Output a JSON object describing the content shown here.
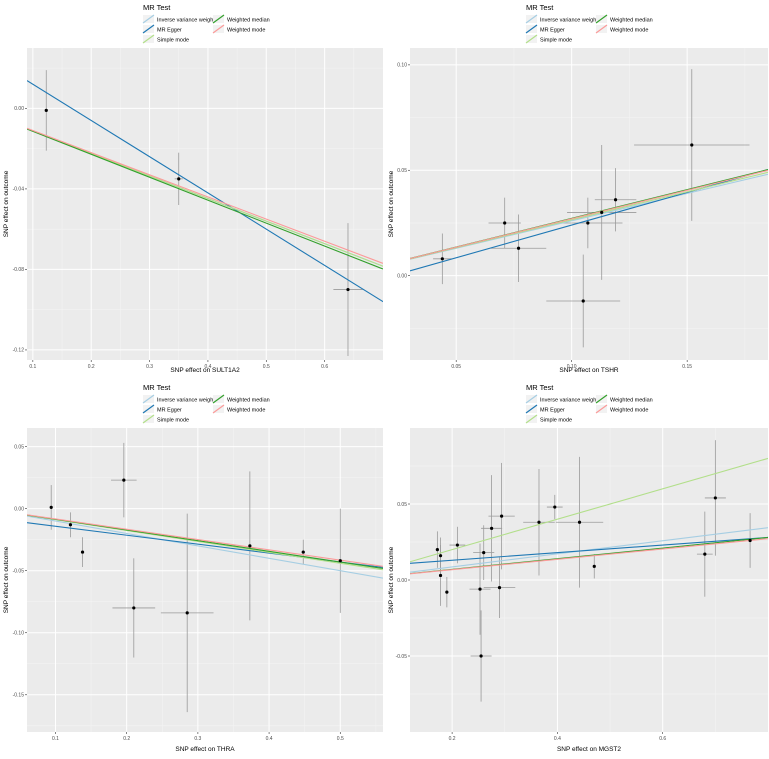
{
  "legend": {
    "title": "MR Test",
    "items": [
      {
        "label": "Inverse variance weighted",
        "color": "#a6cee3"
      },
      {
        "label": "MR Egger",
        "color": "#1f78b4"
      },
      {
        "label": "Simple mode",
        "color": "#b2df8a"
      },
      {
        "label": "Weighted median",
        "color": "#33a02c"
      },
      {
        "label": "Weighted mode",
        "color": "#fb9a99"
      }
    ]
  },
  "colors": {
    "panel_bg": "#ebebeb",
    "grid_major": "#ffffff",
    "point": "#000000",
    "errorbar": "#9a9a9a",
    "axis_text": "#4d4d4d"
  },
  "chart_data": [
    {
      "type": "scatter",
      "xlabel": "SNP effect on SULT1A2",
      "ylabel": "SNP effect on outcome",
      "xlim": [
        0.09,
        0.7
      ],
      "ylim": [
        -0.125,
        0.03
      ],
      "xticks": [
        0.1,
        0.2,
        0.3,
        0.4,
        0.5,
        0.6
      ],
      "xtick_labels": [
        "0.1",
        "0.2",
        "0.3",
        "0.4",
        "0.5",
        "0.6"
      ],
      "yticks": [
        0.0,
        -0.04,
        -0.08,
        -0.12
      ],
      "ytick_labels": [
        "0.00",
        "-0.04",
        "-0.08",
        "-0.12"
      ],
      "points": [
        {
          "x": 0.123,
          "y": -0.001,
          "xerr": 0.0,
          "yerr": 0.02
        },
        {
          "x": 0.35,
          "y": -0.035,
          "xerr": 0.007,
          "yerr": 0.013
        },
        {
          "x": 0.64,
          "y": -0.09,
          "xerr": 0.025,
          "yerr": 0.033
        }
      ],
      "lines": [
        {
          "method": "Inverse variance weighted",
          "intercept": 0.0,
          "slope": -0.112
        },
        {
          "method": "MR Egger",
          "intercept": 0.03,
          "slope": -0.18
        },
        {
          "method": "Simple mode",
          "intercept": 0.0,
          "slope": -0.112
        },
        {
          "method": "Weighted median",
          "intercept": 0.0,
          "slope": -0.114
        },
        {
          "method": "Weighted mode",
          "intercept": 0.0,
          "slope": -0.11
        }
      ]
    },
    {
      "type": "scatter",
      "xlabel": "SNP effect on TSHR",
      "ylabel": "SNP effect on outcome",
      "xlim": [
        0.03,
        0.185
      ],
      "ylim": [
        -0.04,
        0.108
      ],
      "xticks": [
        0.05,
        0.1,
        0.15
      ],
      "xtick_labels": [
        "0.05",
        "0.10",
        "0.15"
      ],
      "yticks": [
        0.1,
        0.05,
        0.0
      ],
      "ytick_labels": [
        "0.10",
        "0.05",
        "0.00"
      ],
      "points": [
        {
          "x": 0.044,
          "y": 0.008,
          "xerr": 0.004,
          "yerr": 0.012
        },
        {
          "x": 0.071,
          "y": 0.025,
          "xerr": 0.007,
          "yerr": 0.012
        },
        {
          "x": 0.077,
          "y": 0.013,
          "xerr": 0.012,
          "yerr": 0.016
        },
        {
          "x": 0.105,
          "y": -0.012,
          "xerr": 0.016,
          "yerr": 0.022
        },
        {
          "x": 0.107,
          "y": 0.025,
          "xerr": 0.015,
          "yerr": 0.012
        },
        {
          "x": 0.113,
          "y": 0.03,
          "xerr": 0.015,
          "yerr": 0.032
        },
        {
          "x": 0.119,
          "y": 0.036,
          "xerr": 0.009,
          "yerr": 0.015
        },
        {
          "x": 0.152,
          "y": 0.062,
          "xerr": 0.025,
          "yerr": 0.036
        }
      ],
      "lines": [
        {
          "method": "Inverse variance weighted",
          "intercept": 0.0,
          "slope": 0.26
        },
        {
          "method": "MR Egger",
          "intercept": -0.007,
          "slope": 0.31
        },
        {
          "method": "Simple mode",
          "intercept": 0.0,
          "slope": 0.265
        },
        {
          "method": "Weighted median",
          "intercept": 0.0,
          "slope": 0.272
        },
        {
          "method": "Weighted mode",
          "intercept": 0.0,
          "slope": 0.27
        }
      ]
    },
    {
      "type": "scatter",
      "xlabel": "SNP effect on THRA",
      "ylabel": "SNP effect on outcome",
      "xlim": [
        0.06,
        0.56
      ],
      "ylim": [
        -0.18,
        0.065
      ],
      "xticks": [
        0.1,
        0.2,
        0.3,
        0.4,
        0.5
      ],
      "xtick_labels": [
        "0.1",
        "0.2",
        "0.3",
        "0.4",
        "0.5"
      ],
      "yticks": [
        0.05,
        0.0,
        -0.05,
        -0.1,
        -0.15
      ],
      "ytick_labels": [
        "0.05",
        "0.00",
        "-0.05",
        "-0.10",
        "-0.15"
      ],
      "points": [
        {
          "x": 0.094,
          "y": 0.001,
          "xerr": 0.0,
          "yerr": 0.018
        },
        {
          "x": 0.121,
          "y": -0.013,
          "xerr": 0.0,
          "yerr": 0.01
        },
        {
          "x": 0.138,
          "y": -0.035,
          "xerr": 0.0,
          "yerr": 0.012
        },
        {
          "x": 0.196,
          "y": 0.023,
          "xerr": 0.018,
          "yerr": 0.03
        },
        {
          "x": 0.21,
          "y": -0.08,
          "xerr": 0.03,
          "yerr": 0.04
        },
        {
          "x": 0.285,
          "y": -0.084,
          "xerr": 0.037,
          "yerr": 0.08
        },
        {
          "x": 0.373,
          "y": -0.03,
          "xerr": 0.0,
          "yerr": 0.06
        },
        {
          "x": 0.448,
          "y": -0.035,
          "xerr": 0.0,
          "yerr": 0.01
        },
        {
          "x": 0.5,
          "y": -0.042,
          "xerr": 0.0,
          "yerr": 0.042
        }
      ],
      "lines": [
        {
          "method": "Inverse variance weighted",
          "intercept": 0.0,
          "slope": -0.1
        },
        {
          "method": "MR Egger",
          "intercept": -0.007,
          "slope": -0.072
        },
        {
          "method": "Simple mode",
          "intercept": 0.0,
          "slope": -0.088
        },
        {
          "method": "Weighted median",
          "intercept": 0.0,
          "slope": -0.086
        },
        {
          "method": "Weighted mode",
          "intercept": 0.0,
          "slope": -0.083
        }
      ]
    },
    {
      "type": "scatter",
      "xlabel": "SNP effect on MGST2",
      "ylabel": "SNP effect on outcome",
      "xlim": [
        0.12,
        0.8
      ],
      "ylim": [
        -0.1,
        0.1
      ],
      "xticks": [
        0.2,
        0.4,
        0.6
      ],
      "xtick_labels": [
        "0.2",
        "0.4",
        "0.6"
      ],
      "yticks": [
        0.05,
        0.0,
        -0.05
      ],
      "ytick_labels": [
        "0.05",
        "0.00",
        "-0.05"
      ],
      "points": [
        {
          "x": 0.172,
          "y": 0.02,
          "xerr": 0.0,
          "yerr": 0.012
        },
        {
          "x": 0.178,
          "y": 0.016,
          "xerr": 0.0,
          "yerr": 0.012
        },
        {
          "x": 0.178,
          "y": 0.003,
          "xerr": 0.0,
          "yerr": 0.02
        },
        {
          "x": 0.19,
          "y": -0.008,
          "xerr": 0.0,
          "yerr": 0.01
        },
        {
          "x": 0.21,
          "y": 0.023,
          "xerr": 0.015,
          "yerr": 0.012
        },
        {
          "x": 0.253,
          "y": -0.006,
          "xerr": 0.02,
          "yerr": 0.03
        },
        {
          "x": 0.255,
          "y": -0.05,
          "xerr": 0.02,
          "yerr": 0.03
        },
        {
          "x": 0.26,
          "y": 0.018,
          "xerr": 0.02,
          "yerr": 0.018
        },
        {
          "x": 0.275,
          "y": 0.034,
          "xerr": 0.02,
          "yerr": 0.035
        },
        {
          "x": 0.29,
          "y": -0.005,
          "xerr": 0.03,
          "yerr": 0.02
        },
        {
          "x": 0.294,
          "y": 0.042,
          "xerr": 0.025,
          "yerr": 0.035
        },
        {
          "x": 0.365,
          "y": 0.038,
          "xerr": 0.03,
          "yerr": 0.035
        },
        {
          "x": 0.395,
          "y": 0.048,
          "xerr": 0.015,
          "yerr": 0.008
        },
        {
          "x": 0.442,
          "y": 0.038,
          "xerr": 0.045,
          "yerr": 0.043
        },
        {
          "x": 0.47,
          "y": 0.009,
          "xerr": 0.0,
          "yerr": 0.008
        },
        {
          "x": 0.68,
          "y": 0.017,
          "xerr": 0.015,
          "yerr": 0.028
        },
        {
          "x": 0.7,
          "y": 0.054,
          "xerr": 0.02,
          "yerr": 0.038
        },
        {
          "x": 0.766,
          "y": 0.026,
          "xerr": 0.0,
          "yerr": 0.018
        }
      ],
      "lines": [
        {
          "method": "Inverse variance weighted",
          "intercept": 0.0,
          "slope": 0.043
        },
        {
          "method": "MR Egger",
          "intercept": 0.008,
          "slope": 0.025
        },
        {
          "method": "Simple mode",
          "intercept": 0.0,
          "slope": 0.1
        },
        {
          "method": "Weighted median",
          "intercept": 0.0,
          "slope": 0.035
        },
        {
          "method": "Weighted mode",
          "intercept": 0.0,
          "slope": 0.034
        }
      ]
    }
  ]
}
